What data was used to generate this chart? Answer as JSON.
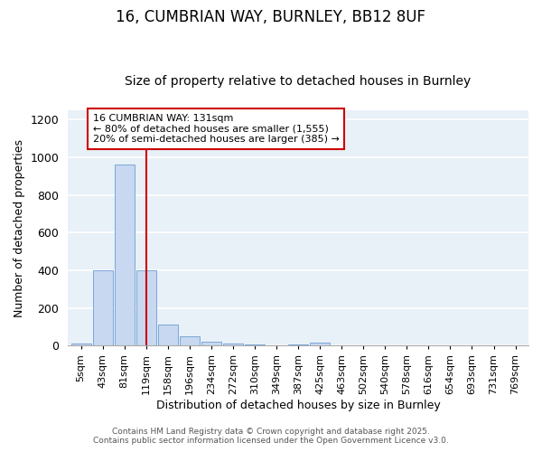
{
  "title_line1": "16, CUMBRIAN WAY, BURNLEY, BB12 8UF",
  "title_line2": "Size of property relative to detached houses in Burnley",
  "xlabel": "Distribution of detached houses by size in Burnley",
  "ylabel": "Number of detached properties",
  "bar_labels": [
    "5sqm",
    "43sqm",
    "81sqm",
    "119sqm",
    "158sqm",
    "196sqm",
    "234sqm",
    "272sqm",
    "310sqm",
    "349sqm",
    "387sqm",
    "425sqm",
    "463sqm",
    "502sqm",
    "540sqm",
    "578sqm",
    "616sqm",
    "654sqm",
    "693sqm",
    "731sqm",
    "769sqm"
  ],
  "bar_values": [
    10,
    400,
    960,
    400,
    110,
    50,
    20,
    10,
    5,
    3,
    5,
    15,
    0,
    0,
    0,
    0,
    0,
    0,
    0,
    0,
    0
  ],
  "bar_color": "#c8d8f0",
  "bar_edge_color": "#7aa8d8",
  "plot_bg_color": "#e8f0f8",
  "fig_bg_color": "#ffffff",
  "grid_color": "#ffffff",
  "vline_x": 3.0,
  "vline_color": "#cc0000",
  "ylim": [
    0,
    1250
  ],
  "yticks": [
    0,
    200,
    400,
    600,
    800,
    1000,
    1200
  ],
  "annotation_text_line1": "16 CUMBRIAN WAY: 131sqm",
  "annotation_text_line2": "← 80% of detached houses are smaller (1,555)",
  "annotation_text_line3": "20% of semi-detached houses are larger (385) →",
  "footer_line1": "Contains HM Land Registry data © Crown copyright and database right 2025.",
  "footer_line2": "Contains public sector information licensed under the Open Government Licence v3.0.",
  "title_fontsize": 12,
  "subtitle_fontsize": 10,
  "axis_label_fontsize": 9,
  "tick_fontsize": 8,
  "annotation_fontsize": 8,
  "footer_fontsize": 6.5
}
